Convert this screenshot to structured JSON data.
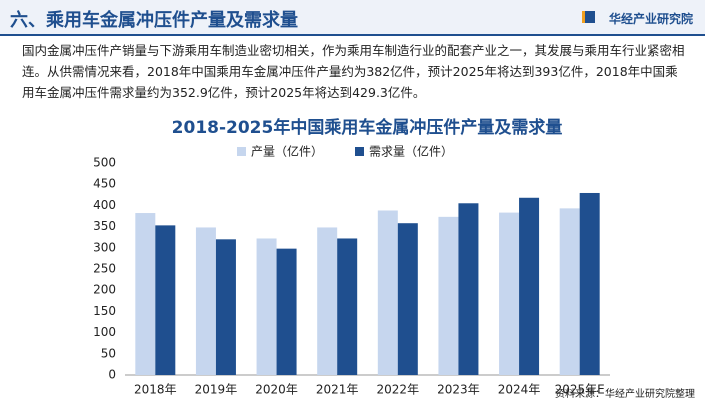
{
  "header": {
    "title": "六、乘用车金属冲压件产量及需求量",
    "brand": "华经产业研究院"
  },
  "paragraph": "国内金属冲压件产销量与下游乘用车制造业密切相关，作为乘用车制造行业的配套产业之一，其发展与乘用车行业紧密相连。从供需情况来看，2018年中国乘用车金属冲压件产量约为382亿件，预计2025年将达到393亿件，2018年中国乘用车金属冲压件需求量约为352.9亿件，预计2025年将达到429.3亿件。",
  "chart_data": {
    "type": "bar",
    "title": "2018-2025年中国乘用车金属冲压件产量及需求量",
    "categories": [
      "2018年",
      "2019年",
      "2020年",
      "2021年",
      "2022年",
      "2023年",
      "2024年",
      "2025年E"
    ],
    "series": [
      {
        "name": "产量（亿件）",
        "color": "#c6d6ee",
        "values": [
          382,
          348,
          322,
          348,
          388,
          373,
          383,
          393
        ]
      },
      {
        "name": "需求量（亿件）",
        "color": "#1f4f8f",
        "values": [
          352.9,
          320,
          298,
          322,
          358,
          405,
          418,
          429.3
        ]
      }
    ],
    "ylim": [
      0,
      500
    ],
    "yticks": [
      0,
      50,
      100,
      150,
      200,
      250,
      300,
      350,
      400,
      450,
      500
    ],
    "grid": false,
    "legend": "top"
  },
  "source": "资料来源：华经产业研究院整理"
}
